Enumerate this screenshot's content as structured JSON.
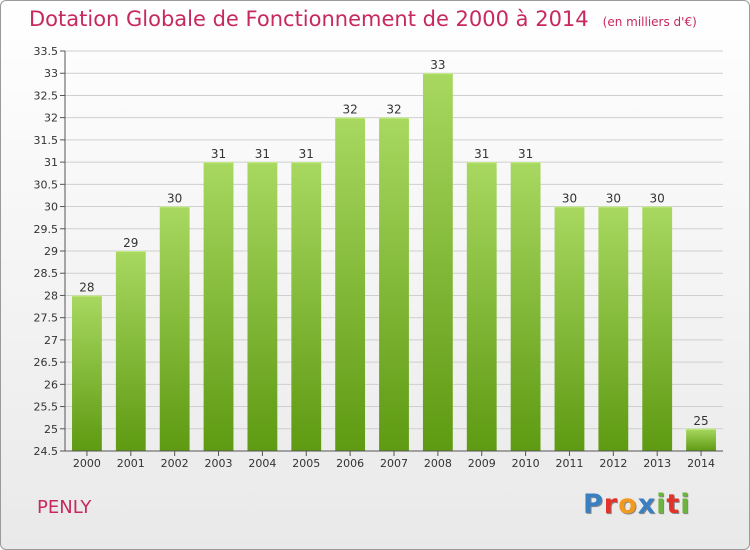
{
  "header": {
    "title": "Dotation Globale de Fonctionnement de 2000 à 2014",
    "unit": "(en milliers d'€)"
  },
  "footer": {
    "commune": "PENLY",
    "logo_text": "Proxiti",
    "logo_colors": [
      "#3a7fc1",
      "#e2322a",
      "#f29a1f",
      "#3a7fc1",
      "#6db33f",
      "#e2322a",
      "#6db33f"
    ]
  },
  "colors": {
    "title": "#c7285f",
    "bar_top": "#a8d860",
    "bar_bottom": "#5e9a12",
    "grid": "#cfcfcf"
  },
  "chart_data": {
    "type": "bar",
    "title": "Dotation Globale de Fonctionnement de 2000 à 2014",
    "subtitle": "(en milliers d'€)",
    "xlabel": "",
    "ylabel": "",
    "categories": [
      "2000",
      "2001",
      "2002",
      "2003",
      "2004",
      "2005",
      "2006",
      "2007",
      "2008",
      "2009",
      "2010",
      "2011",
      "2012",
      "2013",
      "2014"
    ],
    "values": [
      28,
      29,
      30,
      31,
      31,
      31,
      32,
      32,
      33,
      31,
      31,
      30,
      30,
      30,
      25
    ],
    "data_labels": [
      "28",
      "29",
      "30",
      "31",
      "31",
      "31",
      "32",
      "32",
      "33",
      "31",
      "31",
      "30",
      "30",
      "30",
      "25"
    ],
    "ylim": [
      24.5,
      33.5
    ],
    "y_ticks": [
      "24.5",
      "25",
      "25.5",
      "26",
      "26.5",
      "27",
      "27.5",
      "28",
      "28.5",
      "29",
      "29.5",
      "30",
      "30.5",
      "31",
      "31.5",
      "32",
      "32.5",
      "33",
      "33.5"
    ],
    "grid": true,
    "legend": "none"
  }
}
